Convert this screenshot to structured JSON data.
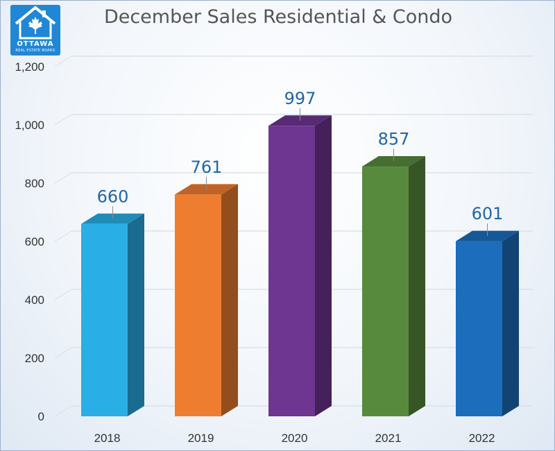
{
  "logo": {
    "word": "OTTAWA",
    "sub": "REAL ESTATE BOARD",
    "color": "#1f87d6"
  },
  "chart_data": {
    "type": "bar",
    "title": "December Sales Residential & Condo",
    "categories": [
      "2018",
      "2019",
      "2020",
      "2021",
      "2022"
    ],
    "values": [
      660,
      761,
      997,
      857,
      601
    ],
    "data_labels": [
      "660",
      "761",
      "997",
      "857",
      "601"
    ],
    "y_tick_labels": [
      "0",
      "200",
      "400",
      "600",
      "800",
      "1,000",
      "1,200"
    ],
    "y_ticks": [
      0,
      200,
      400,
      600,
      800,
      1000,
      1200
    ],
    "ylim": [
      0,
      1200
    ],
    "xlabel": "",
    "ylabel": "",
    "grid": true,
    "legend": "none",
    "style": "3d-column",
    "colors": [
      "#29aee6",
      "#ef7d30",
      "#6e3591",
      "#578a3c",
      "#1c6dbb"
    ],
    "label_color": "#1f66a8"
  }
}
